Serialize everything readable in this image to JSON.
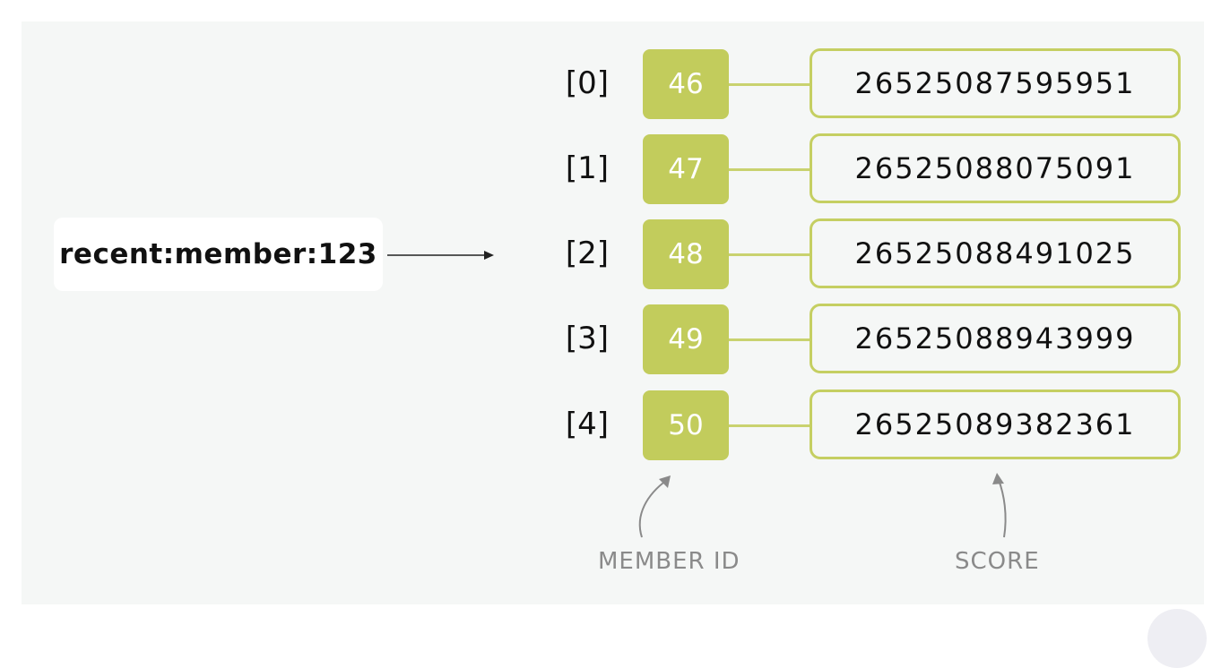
{
  "key": "recent:member:123",
  "entries": [
    {
      "index": "[0]",
      "member": "46",
      "score": "26525087595951"
    },
    {
      "index": "[1]",
      "member": "47",
      "score": "26525088075091"
    },
    {
      "index": "[2]",
      "member": "48",
      "score": "26525088491025"
    },
    {
      "index": "[3]",
      "member": "49",
      "score": "26525088943999"
    },
    {
      "index": "[4]",
      "member": "50",
      "score": "26525089382361"
    }
  ],
  "labels": {
    "member": "MEMBER ID",
    "score": "SCORE"
  },
  "colors": {
    "accent": "#c2cc5c",
    "background": "#f5f7f6"
  }
}
